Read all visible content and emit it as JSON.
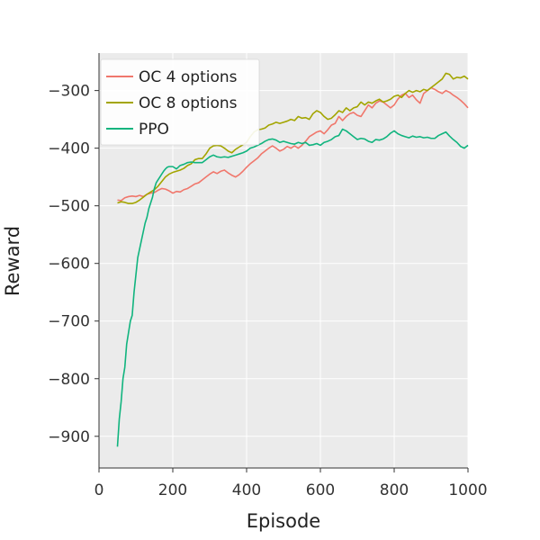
{
  "chart_data": {
    "type": "line",
    "xlabel": "Episode",
    "ylabel": "Reward",
    "xlim": [
      0,
      1000
    ],
    "ylim": [
      -955,
      -235
    ],
    "xticks": [
      0,
      200,
      400,
      600,
      800,
      1000
    ],
    "yticks": [
      -900,
      -800,
      -700,
      -600,
      -500,
      -400,
      -300
    ],
    "ytick_labels": [
      "−900",
      "−800",
      "−700",
      "−600",
      "−500",
      "−400",
      "−300"
    ],
    "grid": true,
    "legend_position": "top-left",
    "series": [
      {
        "name": "OC 4 options",
        "color": "#f0776c",
        "x": [
          50,
          60,
          70,
          80,
          90,
          100,
          110,
          120,
          130,
          140,
          150,
          160,
          170,
          180,
          190,
          200,
          210,
          220,
          230,
          240,
          250,
          260,
          270,
          280,
          290,
          300,
          310,
          320,
          330,
          340,
          350,
          360,
          370,
          380,
          390,
          400,
          410,
          420,
          430,
          440,
          450,
          460,
          470,
          480,
          490,
          500,
          510,
          520,
          530,
          540,
          550,
          560,
          570,
          580,
          590,
          600,
          610,
          620,
          630,
          640,
          650,
          660,
          670,
          680,
          690,
          700,
          710,
          720,
          730,
          740,
          750,
          760,
          770,
          780,
          790,
          800,
          810,
          820,
          830,
          840,
          850,
          860,
          870,
          880,
          890,
          900,
          910,
          920,
          930,
          940,
          950,
          960,
          970,
          980,
          990,
          1000
        ],
        "y": [
          -490,
          -491,
          -486,
          -484,
          -483,
          -484,
          -482,
          -484,
          -480,
          -478,
          -477,
          -473,
          -470,
          -471,
          -474,
          -478,
          -475,
          -476,
          -472,
          -470,
          -466,
          -462,
          -460,
          -455,
          -450,
          -445,
          -441,
          -444,
          -440,
          -438,
          -443,
          -447,
          -450,
          -446,
          -440,
          -433,
          -427,
          -422,
          -417,
          -410,
          -405,
          -400,
          -396,
          -400,
          -405,
          -402,
          -397,
          -400,
          -396,
          -400,
          -395,
          -388,
          -380,
          -376,
          -372,
          -370,
          -375,
          -368,
          -360,
          -357,
          -345,
          -352,
          -345,
          -340,
          -338,
          -343,
          -345,
          -335,
          -325,
          -330,
          -322,
          -318,
          -320,
          -325,
          -330,
          -325,
          -315,
          -308,
          -305,
          -312,
          -308,
          -316,
          -322,
          -305,
          -300,
          -295,
          -298,
          -302,
          -305,
          -300,
          -303,
          -308,
          -312,
          -317,
          -323,
          -330
        ]
      },
      {
        "name": "OC 8 options",
        "color": "#a3a500",
        "x": [
          50,
          60,
          70,
          80,
          90,
          100,
          110,
          120,
          130,
          140,
          150,
          160,
          170,
          180,
          190,
          200,
          210,
          220,
          230,
          240,
          250,
          260,
          270,
          280,
          290,
          300,
          310,
          320,
          330,
          340,
          350,
          360,
          370,
          380,
          390,
          400,
          410,
          420,
          430,
          440,
          450,
          460,
          470,
          480,
          490,
          500,
          510,
          520,
          530,
          540,
          550,
          560,
          570,
          580,
          590,
          600,
          610,
          620,
          630,
          640,
          650,
          660,
          670,
          680,
          690,
          700,
          710,
          720,
          730,
          740,
          750,
          760,
          770,
          780,
          790,
          800,
          810,
          820,
          830,
          840,
          850,
          860,
          870,
          880,
          890,
          900,
          910,
          920,
          930,
          940,
          950,
          960,
          970,
          980,
          990,
          1000
        ],
        "y": [
          -495,
          -493,
          -494,
          -496,
          -496,
          -494,
          -490,
          -485,
          -480,
          -476,
          -472,
          -466,
          -458,
          -450,
          -445,
          -442,
          -440,
          -438,
          -435,
          -430,
          -427,
          -420,
          -418,
          -418,
          -410,
          -400,
          -396,
          -395,
          -396,
          -400,
          -405,
          -408,
          -402,
          -398,
          -394,
          -390,
          -380,
          -372,
          -368,
          -367,
          -365,
          -360,
          -358,
          -355,
          -357,
          -355,
          -353,
          -350,
          -352,
          -345,
          -348,
          -347,
          -350,
          -340,
          -335,
          -338,
          -345,
          -350,
          -348,
          -342,
          -335,
          -338,
          -330,
          -335,
          -330,
          -328,
          -320,
          -325,
          -320,
          -322,
          -318,
          -315,
          -320,
          -318,
          -315,
          -310,
          -308,
          -312,
          -305,
          -300,
          -303,
          -300,
          -302,
          -298,
          -300,
          -295,
          -290,
          -285,
          -280,
          -270,
          -272,
          -280,
          -277,
          -278,
          -275,
          -280
        ]
      },
      {
        "name": "PPO",
        "color": "#10b47e",
        "x": [
          50,
          55,
          60,
          65,
          70,
          75,
          80,
          85,
          90,
          95,
          100,
          105,
          110,
          115,
          120,
          125,
          130,
          135,
          140,
          145,
          150,
          155,
          160,
          165,
          170,
          175,
          180,
          185,
          190,
          200,
          210,
          220,
          230,
          240,
          250,
          260,
          270,
          280,
          290,
          300,
          310,
          320,
          330,
          340,
          350,
          360,
          370,
          380,
          390,
          400,
          410,
          420,
          430,
          440,
          450,
          460,
          470,
          480,
          490,
          500,
          510,
          520,
          530,
          540,
          550,
          560,
          570,
          580,
          590,
          600,
          610,
          620,
          630,
          640,
          650,
          660,
          670,
          680,
          690,
          700,
          710,
          720,
          730,
          740,
          750,
          760,
          770,
          780,
          790,
          800,
          810,
          820,
          830,
          840,
          850,
          860,
          870,
          880,
          890,
          900,
          910,
          920,
          930,
          940,
          950,
          960,
          970,
          980,
          990,
          1000
        ],
        "y": [
          -918,
          -870,
          -840,
          -800,
          -780,
          -740,
          -720,
          -700,
          -690,
          -650,
          -620,
          -590,
          -575,
          -560,
          -545,
          -530,
          -520,
          -505,
          -495,
          -485,
          -470,
          -460,
          -455,
          -450,
          -445,
          -440,
          -436,
          -433,
          -432,
          -432,
          -436,
          -430,
          -428,
          -425,
          -424,
          -425,
          -425,
          -425,
          -420,
          -415,
          -412,
          -415,
          -416,
          -415,
          -416,
          -414,
          -412,
          -410,
          -408,
          -405,
          -400,
          -398,
          -395,
          -392,
          -388,
          -385,
          -384,
          -386,
          -390,
          -388,
          -390,
          -392,
          -393,
          -390,
          -392,
          -390,
          -395,
          -394,
          -392,
          -395,
          -390,
          -388,
          -385,
          -380,
          -378,
          -367,
          -370,
          -375,
          -380,
          -385,
          -383,
          -384,
          -388,
          -390,
          -385,
          -386,
          -384,
          -380,
          -374,
          -370,
          -375,
          -378,
          -380,
          -382,
          -379,
          -381,
          -380,
          -382,
          -381,
          -383,
          -383,
          -378,
          -375,
          -372,
          -379,
          -385,
          -390,
          -397,
          -400,
          -395
        ]
      }
    ]
  }
}
